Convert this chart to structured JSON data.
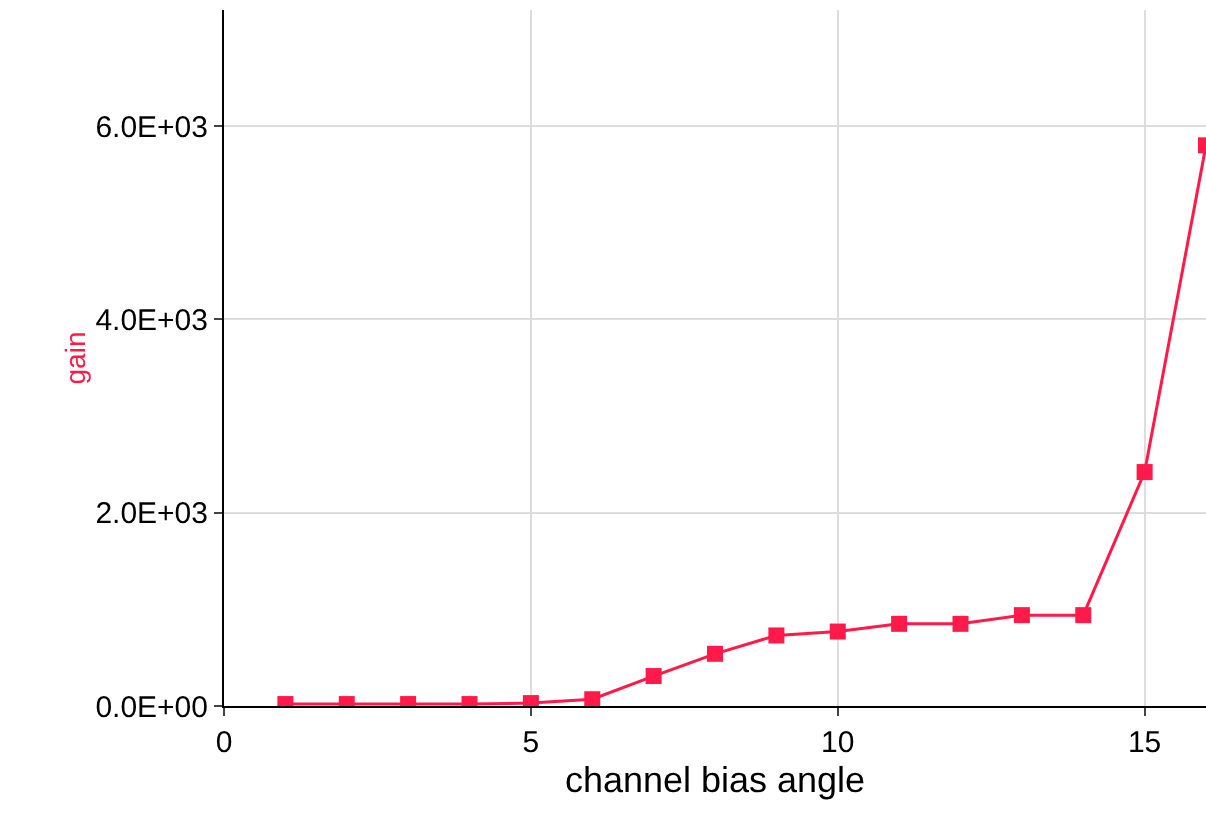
{
  "chart_data": {
    "type": "line",
    "xlabel": "channel bias angle",
    "ylabel": "gain",
    "x": [
      1,
      2,
      3,
      4,
      5,
      6,
      7,
      8,
      9,
      10,
      11,
      12,
      13,
      14,
      15,
      16
    ],
    "series": [
      {
        "color": "#ff1a4a",
        "values": [
          20,
          20,
          20,
          20,
          30,
          70,
          310,
          540,
          730,
          770,
          850,
          850,
          940,
          940,
          2420,
          5800
        ]
      }
    ],
    "xlim": [
      0,
      16
    ],
    "ylim": [
      0,
      7200
    ],
    "xticks": [
      0,
      5,
      10,
      15
    ],
    "yticks": [
      {
        "value": 0,
        "label": "0.0E+00"
      },
      {
        "value": 2000,
        "label": "2.0E+03"
      },
      {
        "value": 4000,
        "label": "4.0E+03"
      },
      {
        "value": 6000,
        "label": "6.0E+03"
      }
    ],
    "grid": true,
    "marker": "square",
    "line_style": "solid"
  }
}
